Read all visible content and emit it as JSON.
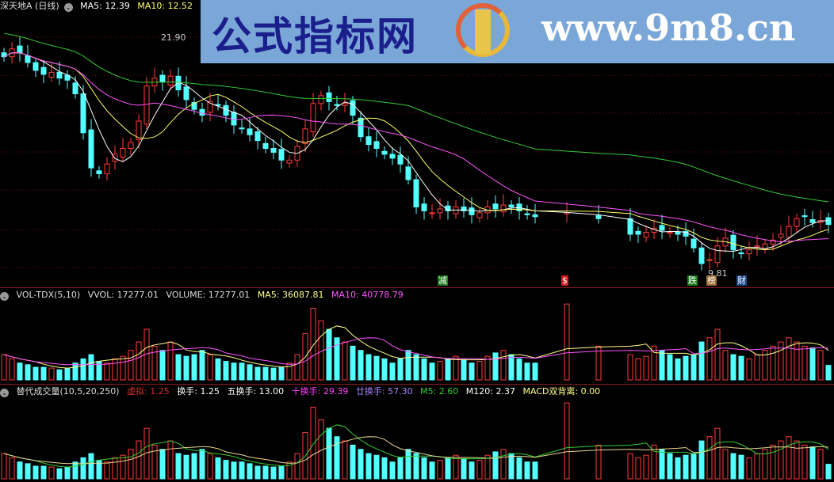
{
  "header": {
    "stock": "深天地A (日线)",
    "ma5": "MA5: 12.39",
    "ma10": "MA10: 12.52",
    "ma_more": "MA"
  },
  "high_label": "21.90",
  "low_label": "9.81",
  "watermark": {
    "cn": "公式指标网",
    "url": "www.9m8.cn",
    "logo_text": "www.9m8.cn"
  },
  "markers": [
    {
      "t": "减",
      "c": "#1d7a1d"
    },
    {
      "t": "$",
      "c": "#d02020"
    },
    {
      "t": "跌",
      "c": "#1d7a1d"
    },
    {
      "t": "榜",
      "c": "#9a6a30"
    },
    {
      "t": "财",
      "c": "#1e4a8a"
    }
  ],
  "vol_header": {
    "name": "VOL-TDX(5,10)",
    "vvol": "VVOL: 17277.01",
    "volume": "VOLUME: 17277.01",
    "ma5": "MA5: 36087.81",
    "ma10": "MA10: 40778.79"
  },
  "turn_header": {
    "name": "替代成交量(10,5,20,250)",
    "virtual": "虚拟: 1.25",
    "turn": "换手: 1.25",
    "turn5": "五换手: 13.00",
    "turn10": "十换手: 29.39",
    "turn20": "廿换手: 57.30",
    "m5": "M5: 2.60",
    "m120": "M120: 2.37",
    "macd": "MACD双背离: 0.00"
  },
  "colors": {
    "up": "#ff3c3c",
    "down": "#54ffff",
    "ma5": "#ffffff",
    "ma10": "#ffff66",
    "ma20": "#ff55ff",
    "ma60": "#33cc33",
    "grid": "#7a1010"
  },
  "chart_data": {
    "type": "candlestick",
    "price_range": [
      9.4,
      23.8
    ],
    "close": [
      20.9,
      21.3,
      21.1,
      20.6,
      20.2,
      20.0,
      20.1,
      19.8,
      19.7,
      19.0,
      17.0,
      15.2,
      14.9,
      15.4,
      15.9,
      16.2,
      16.5,
      17.6,
      19.4,
      19.8,
      19.6,
      19.9,
      19.2,
      18.7,
      18.2,
      17.9,
      18.6,
      18.4,
      17.9,
      17.4,
      17.2,
      16.9,
      16.6,
      16.2,
      16.0,
      15.6,
      15.6,
      16.3,
      17.2,
      18.5,
      18.9,
      18.6,
      18.4,
      18.5,
      17.9,
      16.8,
      16.4,
      16.2,
      15.9,
      15.7,
      15.4,
      14.6,
      13.2,
      13.0,
      12.9,
      13.1,
      13.0,
      13.2,
      13.0,
      12.8,
      12.9,
      13.2,
      13.1,
      13.3,
      13.2,
      13.0,
      12.8,
      12.7,
      null,
      null,
      null,
      12.9,
      null,
      null,
      null,
      12.6,
      null,
      null,
      null,
      11.8,
      11.8,
      11.9,
      12.1,
      12.0,
      11.9,
      11.8,
      11.7,
      11.1,
      10.3,
      10.5,
      11.2,
      11.6,
      11.0,
      10.8,
      11.0,
      11.2,
      11.3,
      11.5,
      11.8,
      12.2,
      12.6,
      12.7,
      12.4,
      12.5,
      12.3
    ],
    "volume": [
      30000,
      25000,
      20000,
      18000,
      15000,
      15000,
      14000,
      12000,
      14000,
      20000,
      25000,
      30000,
      22000,
      20000,
      25000,
      28000,
      35000,
      45000,
      60000,
      40000,
      35000,
      45000,
      30000,
      28000,
      30000,
      35000,
      30000,
      25000,
      22000,
      20000,
      20000,
      18000,
      15000,
      15000,
      14000,
      15000,
      20000,
      30000,
      55000,
      85000,
      70000,
      60000,
      50000,
      45000,
      40000,
      35000,
      30000,
      28000,
      25000,
      20000,
      25000,
      35000,
      30000,
      25000,
      20000,
      22000,
      25000,
      28000,
      24000,
      20000,
      22000,
      28000,
      32000,
      35000,
      30000,
      25000,
      20000,
      20000,
      null,
      null,
      null,
      90000,
      null,
      null,
      null,
      40000,
      null,
      null,
      null,
      30000,
      25000,
      28000,
      40000,
      35000,
      30000,
      25000,
      28000,
      30000,
      45000,
      50000,
      60000,
      35000,
      30000,
      28000,
      25000,
      30000,
      35000,
      40000,
      45000,
      50000,
      45000,
      40000,
      38000,
      35000,
      17277.01
    ],
    "high": 21.9,
    "low": 9.81
  }
}
